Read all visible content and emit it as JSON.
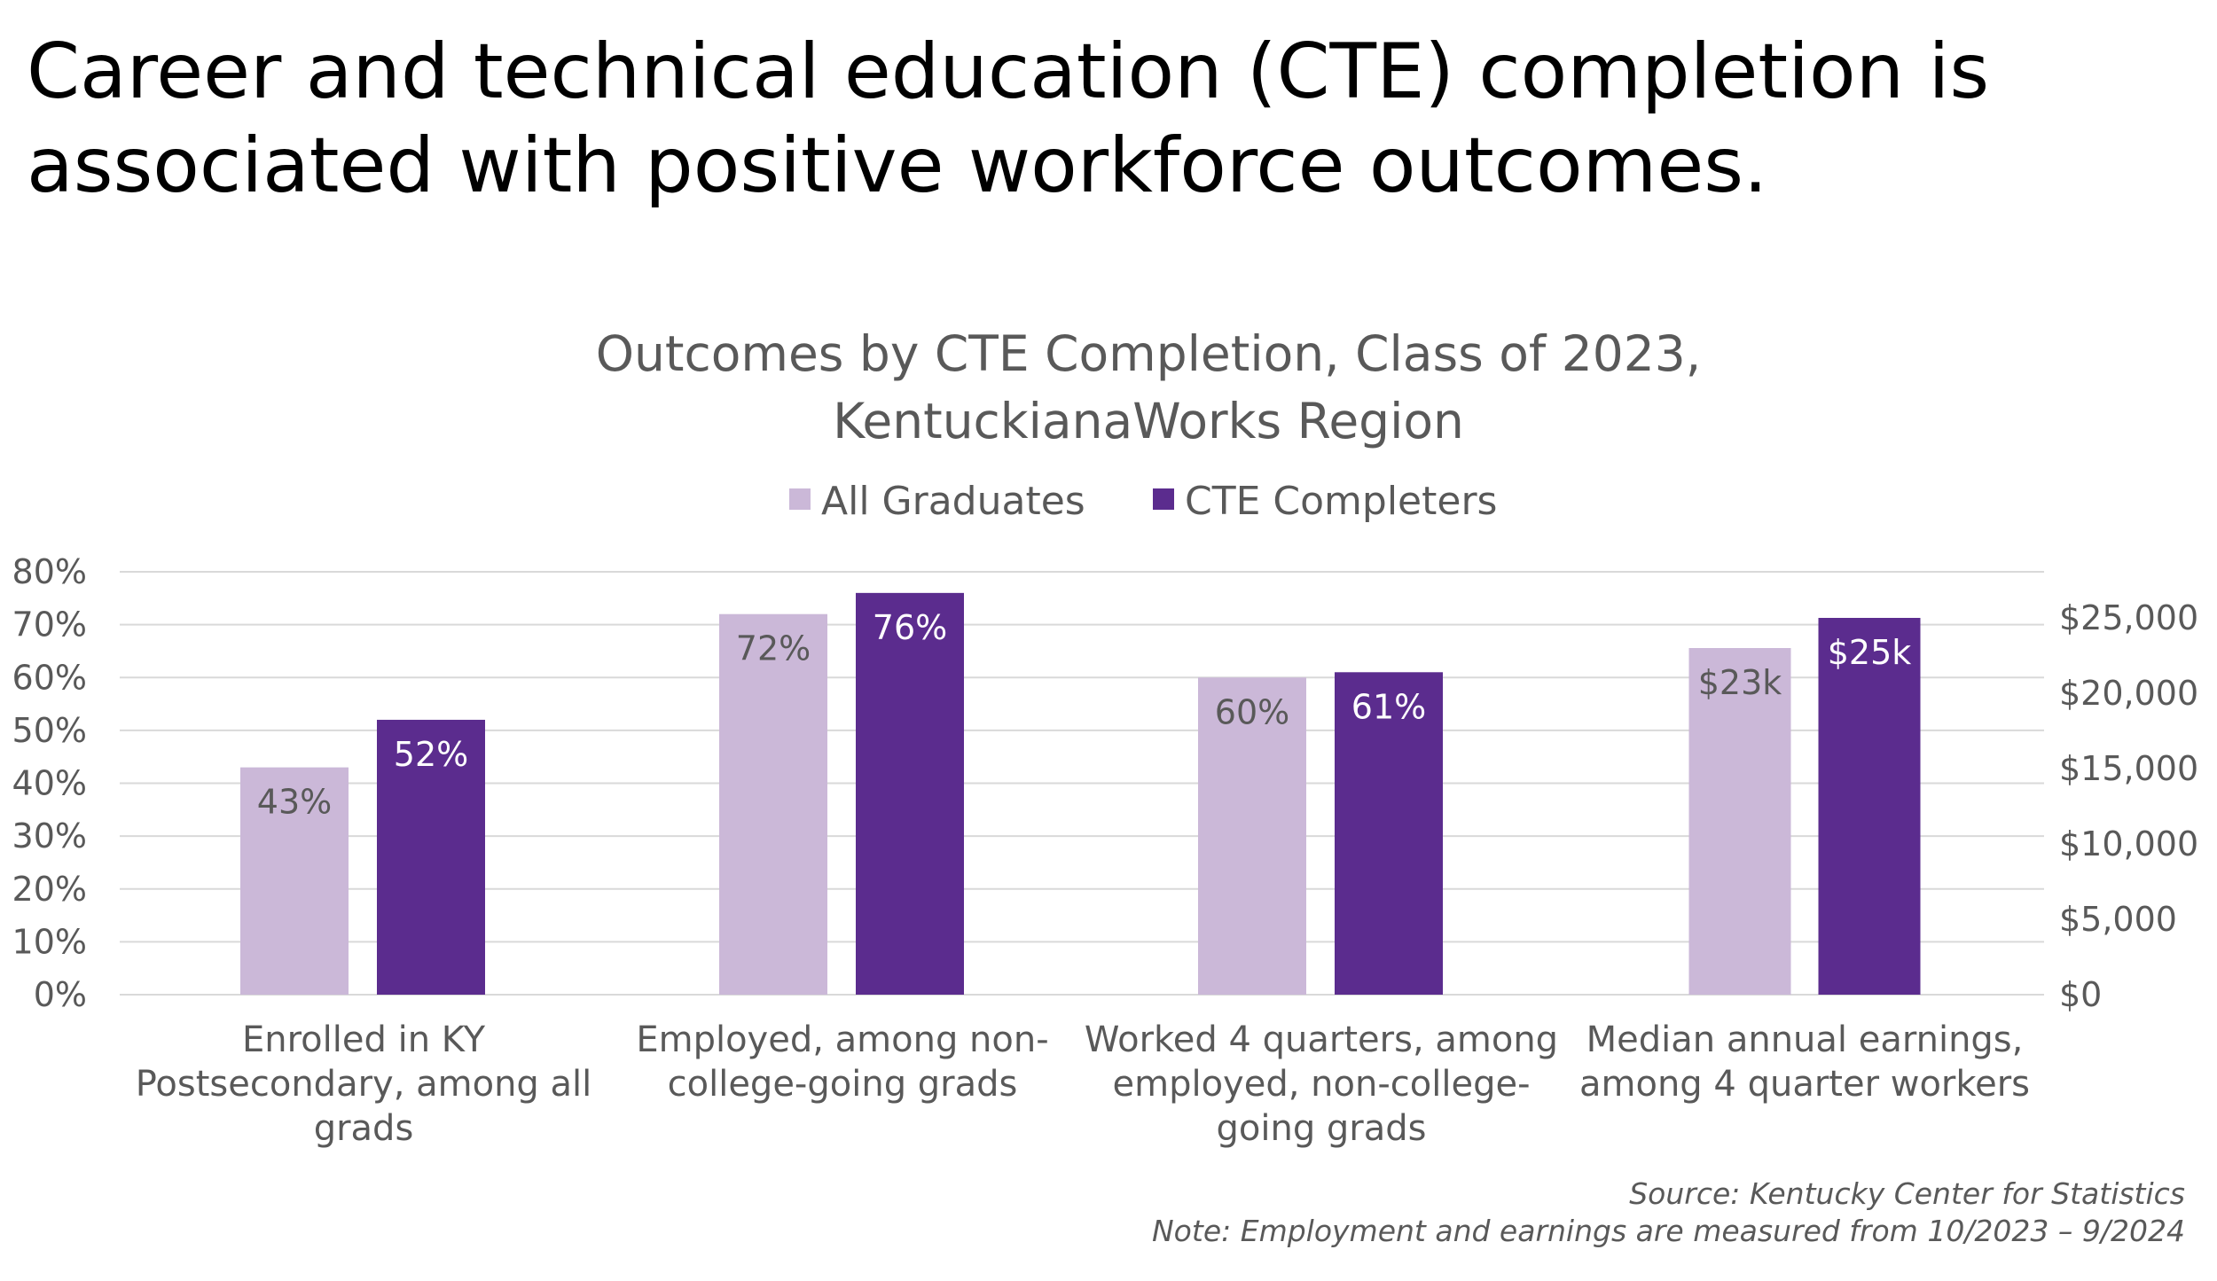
{
  "headline": {
    "line1": "Career and technical education (CTE) completion is",
    "line2": "associated with positive workforce outcomes."
  },
  "colors": {
    "all_graduates": "#cbb8d8",
    "cte_completers": "#5b2c8e",
    "gridline": "#d9d9d9",
    "text": "#595959"
  },
  "chart_data": {
    "type": "bar",
    "title": [
      "Outcomes by CTE Completion, Class of 2023,",
      "KentuckianaWorks Region"
    ],
    "legend_position": "top",
    "grid": true,
    "categories": [
      [
        "Enrolled in KY",
        "Postsecondary, among all",
        "grads"
      ],
      [
        "Employed, among non-",
        "college-going grads"
      ],
      [
        "Worked 4 quarters, among",
        "employed, non-college-",
        "going grads"
      ],
      [
        "Median annual earnings,",
        "among 4 quarter workers"
      ]
    ],
    "series": [
      {
        "name": "All Graduates",
        "color": "#cbb8d8",
        "values": [
          43,
          72,
          60,
          23000
        ],
        "labels": [
          "43%",
          "72%",
          "60%",
          "$23k"
        ]
      },
      {
        "name": "CTE Completers",
        "color": "#5b2c8e",
        "values": [
          52,
          76,
          61,
          25000
        ],
        "labels": [
          "52%",
          "76%",
          "61%",
          "$25k"
        ]
      }
    ],
    "axis_assignment": [
      "left",
      "left",
      "left",
      "right"
    ],
    "y_left": {
      "ylim": [
        0,
        80
      ],
      "ticks": [
        "0%",
        "10%",
        "20%",
        "30%",
        "40%",
        "50%",
        "60%",
        "70%",
        "80%"
      ]
    },
    "y_right": {
      "ylim": [
        0,
        28000
      ],
      "ticks": [
        "$0",
        "$5,000",
        "$10,000",
        "$15,000",
        "$20,000",
        "$25,000"
      ],
      "tick_values": [
        0,
        5000,
        10000,
        15000,
        20000,
        25000
      ]
    }
  },
  "notes": {
    "source": "Source: Kentucky Center for Statistics",
    "note": "Note: Employment and earnings are measured from 10/2023 – 9/2024"
  }
}
